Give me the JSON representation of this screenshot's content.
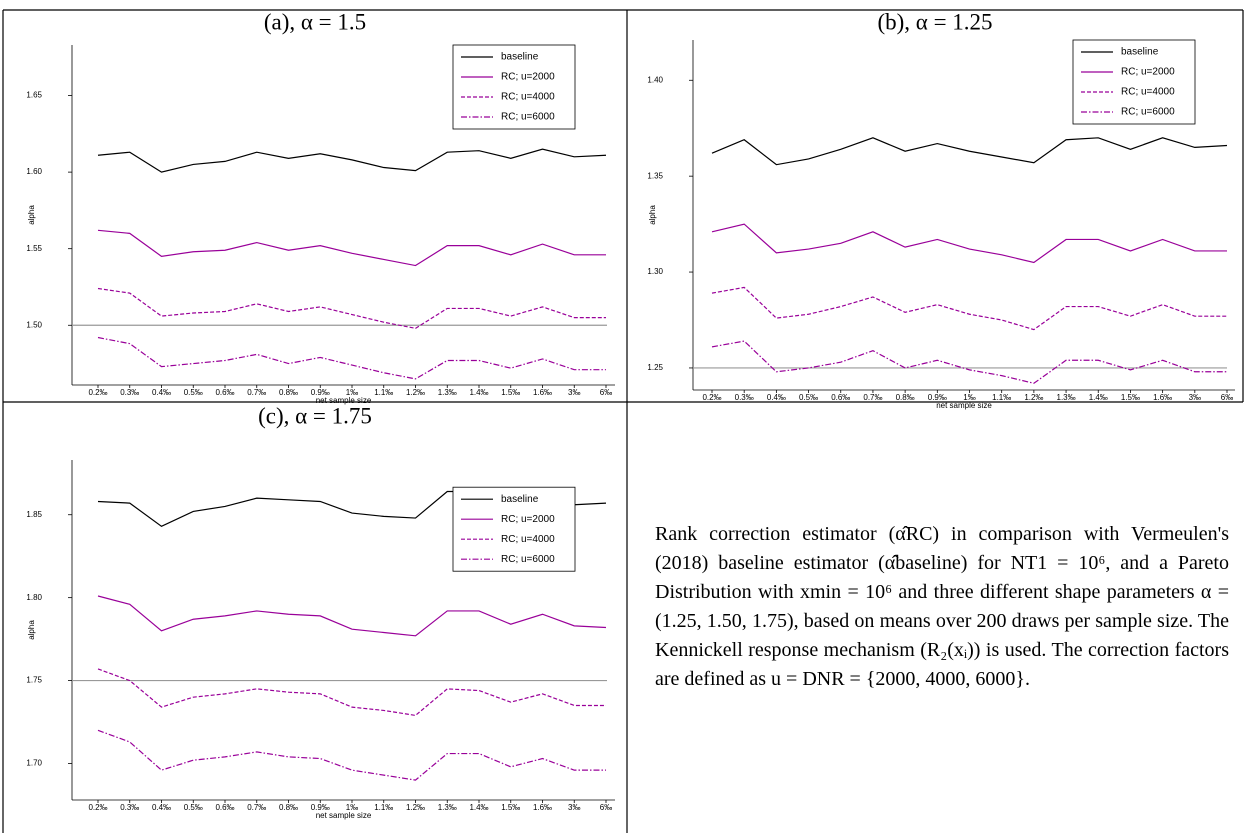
{
  "chart_data": [
    {
      "type": "line",
      "title": "(a), α = 1.5",
      "x_label": "net sample size",
      "y_label": "alpha",
      "categories": [
        "0.2‰",
        "0.3‰",
        "0.4‰",
        "0.5‰",
        "0.6‰",
        "0.7‰",
        "0.8‰",
        "0.9‰",
        "1‰",
        "1.1‰",
        "1.2‰",
        "1.3‰",
        "1.4‰",
        "1.5‰",
        "1.6‰",
        "3‰",
        "6‰"
      ],
      "series": [
        {
          "name": "baseline",
          "color": "#000000",
          "dash": "solid",
          "values": [
            1.611,
            1.613,
            1.6,
            1.605,
            1.607,
            1.613,
            1.609,
            1.612,
            1.608,
            1.603,
            1.601,
            1.613,
            1.614,
            1.609,
            1.615,
            1.61,
            1.611
          ]
        },
        {
          "name": "RC; u=2000",
          "color": "#990099",
          "dash": "solid",
          "values": [
            1.562,
            1.56,
            1.545,
            1.548,
            1.549,
            1.554,
            1.549,
            1.552,
            1.547,
            1.543,
            1.539,
            1.552,
            1.552,
            1.546,
            1.553,
            1.546,
            1.546
          ]
        },
        {
          "name": "RC; u=4000",
          "color": "#990099",
          "dash": "dashed",
          "values": [
            1.524,
            1.521,
            1.506,
            1.508,
            1.509,
            1.514,
            1.509,
            1.512,
            1.507,
            1.502,
            1.498,
            1.511,
            1.511,
            1.506,
            1.512,
            1.505,
            1.505
          ]
        },
        {
          "name": "RC; u=6000",
          "color": "#990099",
          "dash": "dash-dot",
          "values": [
            1.492,
            1.488,
            1.473,
            1.475,
            1.477,
            1.481,
            1.475,
            1.479,
            1.474,
            1.469,
            1.465,
            1.477,
            1.477,
            1.472,
            1.478,
            1.471,
            1.471
          ]
        }
      ],
      "reference_line": {
        "value": 1.5,
        "color": "#999999"
      },
      "ylim": [
        1.461,
        1.683
      ],
      "yticks": [
        {
          "value": 1.5,
          "label": "1.50"
        },
        1.55,
        {
          "value": 1.6,
          "label": "1.60"
        },
        1.65
      ],
      "grid": false,
      "legend": "upper right"
    },
    {
      "type": "line",
      "title": "(b), α = 1.25",
      "x_label": "net sample size",
      "y_label": "alpha",
      "categories": [
        "0.2‰",
        "0.3‰",
        "0.4‰",
        "0.5‰",
        "0.6‰",
        "0.7‰",
        "0.8‰",
        "0.9‰",
        "1‰",
        "1.1‰",
        "1.2‰",
        "1.3‰",
        "1.4‰",
        "1.5‰",
        "1.6‰",
        "3‰",
        "6‰"
      ],
      "series": [
        {
          "name": "baseline",
          "color": "#000000",
          "dash": "solid",
          "values": [
            1.362,
            1.369,
            1.356,
            1.359,
            1.364,
            1.37,
            1.363,
            1.367,
            1.363,
            1.36,
            1.357,
            1.369,
            1.37,
            1.364,
            1.37,
            1.365,
            1.366
          ]
        },
        {
          "name": "RC; u=2000",
          "color": "#990099",
          "dash": "solid",
          "values": [
            1.321,
            1.325,
            1.31,
            1.312,
            1.315,
            1.321,
            1.313,
            1.317,
            1.312,
            1.309,
            1.305,
            1.317,
            1.317,
            1.311,
            1.317,
            1.311,
            1.311
          ]
        },
        {
          "name": "RC; u=4000",
          "color": "#990099",
          "dash": "dashed",
          "values": [
            1.289,
            1.292,
            1.276,
            1.278,
            1.282,
            1.287,
            1.279,
            1.283,
            1.278,
            1.275,
            1.27,
            1.282,
            1.282,
            1.277,
            1.283,
            1.277,
            1.277
          ]
        },
        {
          "name": "RC; u=6000",
          "color": "#990099",
          "dash": "dash-dot",
          "values": [
            1.261,
            1.264,
            1.248,
            1.25,
            1.253,
            1.259,
            1.25,
            1.254,
            1.249,
            1.246,
            1.242,
            1.254,
            1.254,
            1.249,
            1.254,
            1.248,
            1.248
          ]
        }
      ],
      "reference_line": {
        "value": 1.25,
        "color": "#999999"
      },
      "ylim": [
        1.2385,
        1.421
      ],
      "yticks": [
        1.25,
        {
          "value": 1.3,
          "label": "1.30"
        },
        1.35,
        {
          "value": 1.4,
          "label": "1.40"
        }
      ],
      "grid": false,
      "legend": "upper right"
    },
    {
      "type": "line",
      "title": "(c), α = 1.75",
      "x_label": "net sample size",
      "y_label": "alpha",
      "categories": [
        "0.2‰",
        "0.3‰",
        "0.4‰",
        "0.5‰",
        "0.6‰",
        "0.7‰",
        "0.8‰",
        "0.9‰",
        "1‰",
        "1.1‰",
        "1.2‰",
        "1.3‰",
        "1.4‰",
        "1.5‰",
        "1.6‰",
        "3‰",
        "6‰"
      ],
      "series": [
        {
          "name": "baseline",
          "color": "#000000",
          "dash": "solid",
          "values": [
            1.858,
            1.857,
            1.843,
            1.852,
            1.855,
            1.86,
            1.859,
            1.858,
            1.851,
            1.849,
            1.848,
            1.864,
            1.864,
            1.856,
            1.862,
            1.856,
            1.857
          ]
        },
        {
          "name": "RC; u=2000",
          "color": "#990099",
          "dash": "solid",
          "values": [
            1.801,
            1.796,
            1.78,
            1.787,
            1.789,
            1.792,
            1.79,
            1.789,
            1.781,
            1.779,
            1.777,
            1.792,
            1.792,
            1.784,
            1.79,
            1.783,
            1.782
          ]
        },
        {
          "name": "RC; u=4000",
          "color": "#990099",
          "dash": "dashed",
          "values": [
            1.757,
            1.75,
            1.734,
            1.74,
            1.742,
            1.745,
            1.743,
            1.742,
            1.734,
            1.732,
            1.729,
            1.745,
            1.744,
            1.737,
            1.742,
            1.735,
            1.735
          ]
        },
        {
          "name": "RC; u=6000",
          "color": "#990099",
          "dash": "dash-dot",
          "values": [
            1.72,
            1.713,
            1.696,
            1.702,
            1.704,
            1.707,
            1.704,
            1.703,
            1.696,
            1.693,
            1.69,
            1.706,
            1.706,
            1.698,
            1.703,
            1.696,
            1.696
          ]
        }
      ],
      "reference_line": {
        "value": 1.75,
        "color": "#999999"
      },
      "ylim": [
        1.678,
        1.883
      ],
      "yticks": [
        {
          "value": 1.7,
          "label": "1.70"
        },
        1.75,
        {
          "value": 1.8,
          "label": "1.80"
        },
        1.85
      ],
      "grid": false,
      "legend": "center right"
    }
  ],
  "caption": "Rank correction estimator (α̂RC) in comparison with Vermeulen's (2018) baseline estimator (α̂baseline) for NT1 = 10⁶, and a Pareto Distribution with xmin = 10⁶ and three different shape parameters α = (1.25, 1.50, 1.75), based on means over 200 draws per sample size. The Kennickell response mechanism (R₂(xᵢ)) is used. The correction factors are defined as u = DNR = {2000, 4000, 6000}."
}
